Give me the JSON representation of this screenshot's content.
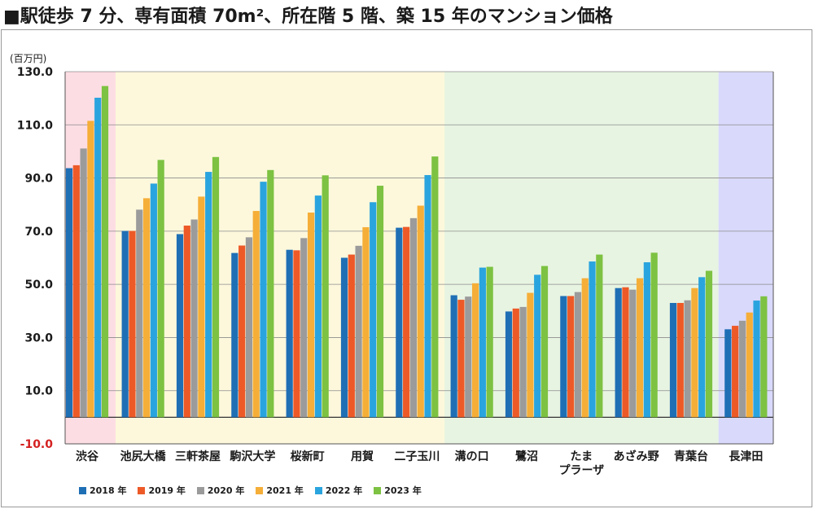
{
  "title": "■駅徒歩 7 分、専有面積 70m²、所在階 5 階、築 15 年のマンション価格",
  "chart_data": {
    "type": "bar",
    "unit": "(百万円)",
    "categories": [
      "渋谷",
      "池尻大橋",
      "三軒茶屋",
      "駒沢大学",
      "桜新町",
      "用賀",
      "二子玉川",
      "溝の口",
      "鷺沼",
      "たま\nプラーザ",
      "あざみ野",
      "青葉台",
      "長津田"
    ],
    "series": [
      {
        "name": "2018 年",
        "color": "#1f6fb5",
        "values": [
          93.7,
          70.1,
          68.9,
          61.8,
          63.0,
          60.0,
          71.3,
          45.9,
          39.8,
          45.6,
          48.6,
          43.0,
          33.1
        ]
      },
      {
        "name": "2019 年",
        "color": "#ed5a28",
        "values": [
          94.8,
          70.1,
          72.1,
          64.6,
          62.8,
          61.2,
          71.6,
          44.2,
          40.9,
          45.6,
          48.9,
          43.0,
          34.4
        ]
      },
      {
        "name": "2020 年",
        "color": "#9b9b9b",
        "values": [
          101.1,
          78.1,
          74.4,
          67.7,
          67.4,
          64.5,
          74.9,
          45.4,
          41.5,
          47.1,
          48.0,
          44.0,
          36.3
        ]
      },
      {
        "name": "2021 年",
        "color": "#f5ae38",
        "values": [
          111.5,
          82.4,
          83.0,
          77.6,
          77.0,
          71.5,
          79.6,
          50.4,
          46.8,
          52.3,
          52.3,
          48.6,
          39.4
        ]
      },
      {
        "name": "2022 年",
        "color": "#2aa4de",
        "values": [
          120.2,
          87.9,
          92.3,
          88.6,
          83.4,
          80.9,
          91.1,
          56.3,
          53.6,
          58.6,
          58.3,
          52.7,
          43.9
        ]
      },
      {
        "name": "2023 年",
        "color": "#7dc242",
        "values": [
          124.6,
          96.8,
          97.9,
          93.0,
          91.0,
          87.1,
          98.1,
          56.6,
          56.9,
          61.2,
          61.9,
          55.1,
          45.5
        ]
      }
    ],
    "ylim": [
      -10,
      130
    ],
    "yticks": [
      "130.0",
      "110.0",
      "90.0",
      "70.0",
      "50.0",
      "30.0",
      "10.0",
      "-10.0"
    ],
    "ytick_values": [
      130,
      110,
      90,
      70,
      50,
      30,
      10,
      -10
    ],
    "region_groups": [
      {
        "from": 0,
        "to": 0,
        "color": "#fddde4"
      },
      {
        "from": 1,
        "to": 6,
        "color": "#fdf8dc"
      },
      {
        "from": 7,
        "to": 11,
        "color": "#e8f4e2"
      },
      {
        "from": 12,
        "to": 12,
        "color": "#d9d9fb"
      }
    ],
    "grid": true,
    "legend": "bottom"
  }
}
